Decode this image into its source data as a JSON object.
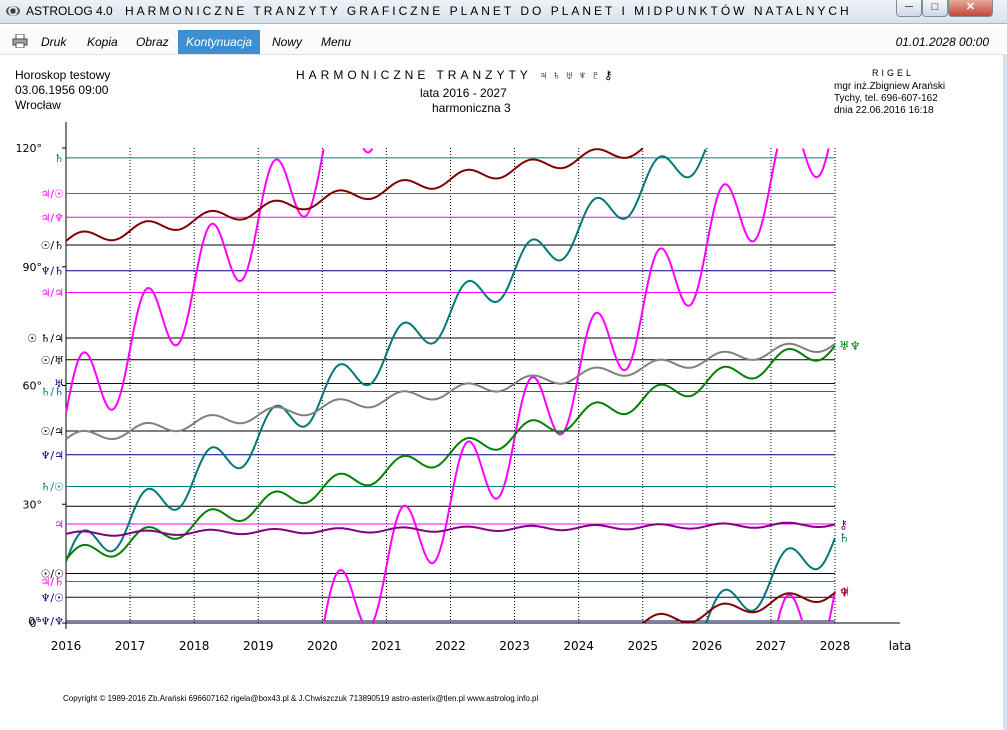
{
  "window": {
    "app_name": "ASTROLOG 4.0",
    "title": "HARMONICZNE TRANZYTY GRAFICZNE PLANET DO PLANET I MIDPUNKTÓW NATALNYCH",
    "min": "─",
    "max": "□",
    "close": "✕"
  },
  "menu": {
    "items": [
      "Druk",
      "Kopia",
      "Obraz",
      "Kontynuacja",
      "Nowy",
      "Menu"
    ],
    "active": "Kontynuacja",
    "date": "01.01.2028  00:00"
  },
  "header": {
    "left": [
      "Horoskop testowy",
      "03.06.1956  09:00",
      "Wrocław"
    ],
    "title": "HARMONICZNE TRANZYTY  ♃♄♅♆♇⚷",
    "years": "lata  2016  -  2027",
    "harmonic": "harmoniczna 3",
    "right_title": "RIGEL",
    "right": [
      "mgr inż.Zbigniew Arański",
      "Tychy, tel. 696-607-162",
      "dnia 22.06.2016  16:18"
    ]
  },
  "copyright": "Copyright © 1989-2016 Zb.Arański 696607162 rigela@box43.pl & J.Chwiszczuk 713890519 astro-asterix@tlen.pl www.astrolog.info.pl",
  "chart_data": {
    "type": "line",
    "title": "HARMONICZNE TRANZYTY",
    "xlabel": "lata",
    "ylabel": "",
    "xlim": [
      2016,
      2028
    ],
    "ylim": [
      0,
      120
    ],
    "x_ticks": [
      "2016",
      "2017",
      "2018",
      "2019",
      "2020",
      "2021",
      "2022",
      "2023",
      "2024",
      "2025",
      "2026",
      "2027",
      "2028"
    ],
    "y_ticks": [
      {
        "v": 0,
        "t": "0°"
      },
      {
        "v": 30,
        "t": "30°"
      },
      {
        "v": 60,
        "t": "60°"
      },
      {
        "v": 90,
        "t": "90°"
      },
      {
        "v": 120,
        "t": "120°"
      }
    ],
    "ref_lines": [
      {
        "label": "♄",
        "y": 117.5,
        "color": "#008080"
      },
      {
        "label": "♃/☉",
        "y": 108.5,
        "color": "#ff00ff"
      },
      {
        "label": "♃/♆",
        "y": 102.5,
        "color": "#ff00ff"
      },
      {
        "label": "☉/♄",
        "y": 95.5,
        "color": "#000000"
      },
      {
        "label": "♆/♄",
        "y": 89.0,
        "color": "#000080"
      },
      {
        "label": "♃/♃",
        "y": 83.5,
        "color": "#ff00ff"
      },
      {
        "label": "☉ ♄/♃",
        "y": 72.0,
        "color": "#000000"
      },
      {
        "label": "☉/♅",
        "y": 66.5,
        "color": "#000000"
      },
      {
        "label": "♅",
        "y": 60.5,
        "color": "#000080"
      },
      {
        "label": "♄/♄",
        "y": 58.5,
        "color": "#008080"
      },
      {
        "label": "☉/♃",
        "y": 48.5,
        "color": "#000000"
      },
      {
        "label": "♆/♃",
        "y": 42.5,
        "color": "#000080"
      },
      {
        "label": "♄/☉",
        "y": 34.5,
        "color": "#008080"
      },
      {
        "label": "",
        "y": 29.5,
        "color": "#000000"
      },
      {
        "label": "♃",
        "y": 25.0,
        "color": "#ff00ff"
      },
      {
        "label": "☉/☉",
        "y": 12.5,
        "color": "#000000"
      },
      {
        "label": "♃/♄",
        "y": 10.5,
        "color": "#ff00ff"
      },
      {
        "label": "♆/☉",
        "y": 6.5,
        "color": "#000080"
      },
      {
        "label": "0°♆/♆",
        "y": 0.5,
        "color": "#000080"
      }
    ],
    "series": [
      {
        "name": "♃",
        "color": "#ff00ff",
        "wrap": true,
        "x0": 2016.0,
        "y0": 53.0,
        "rate": 16.25,
        "amp": 11.0,
        "label": "♃"
      },
      {
        "name": "♄",
        "color": "#007878",
        "wrap": true,
        "x0": 2016.0,
        "y0": 15.5,
        "rate": 10.5,
        "amp": 5.0,
        "label": "♄"
      },
      {
        "name": "♅",
        "color": "#008000",
        "wrap": false,
        "x0": 2016.0,
        "y0": 16.0,
        "rate": 4.5,
        "amp": 2.5,
        "label": "♅♆"
      },
      {
        "name": "♆",
        "color": "#808080",
        "wrap": false,
        "x0": 2016.0,
        "y0": 46.5,
        "rate": 2.0,
        "amp": 1.5,
        "label": ""
      },
      {
        "name": "♇",
        "color": "#800000",
        "wrap": true,
        "x0": 2016.0,
        "y0": 96.5,
        "rate": 2.6,
        "amp": 1.7,
        "label": "♆"
      },
      {
        "name": "⚷",
        "color": "#800080",
        "wrap": false,
        "x0": 2016.0,
        "y0": 22.5,
        "rate": 0.2,
        "amp": 0.6,
        "label": "⚷"
      }
    ]
  }
}
